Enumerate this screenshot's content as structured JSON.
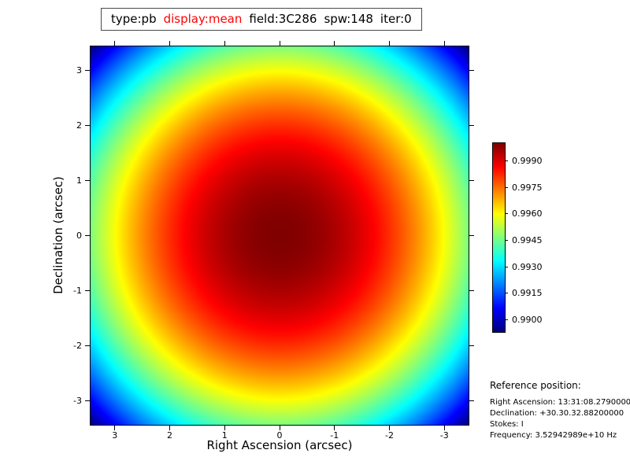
{
  "title": {
    "segments": [
      {
        "text": "type:pb",
        "color": "#000000"
      },
      {
        "text": "display:mean",
        "color": "#ff0000"
      },
      {
        "text": "field:3C286",
        "color": "#000000"
      },
      {
        "text": "spw:148",
        "color": "#000000"
      },
      {
        "text": "iter:0",
        "color": "#000000"
      }
    ]
  },
  "axes": {
    "xlabel": "Right Ascension (arcsec)",
    "ylabel": "Declination (arcsec)",
    "x_tick_labels": [
      "3",
      "2",
      "1",
      "0",
      "-1",
      "-2",
      "-3"
    ],
    "y_tick_labels": [
      "3",
      "2",
      "1",
      "0",
      "-1",
      "-2",
      "-3"
    ]
  },
  "colorbar": {
    "tick_labels": [
      "0.9990",
      "0.9975",
      "0.9960",
      "0.9945",
      "0.9930",
      "0.9915",
      "0.9900"
    ]
  },
  "reference": {
    "heading": "Reference position:",
    "lines": [
      "Right Ascension: 13:31:08.27900000",
      "Declination: +30.30.32.88200000",
      "Stokes: I",
      "Frequency: 3.52942989e+10 Hz"
    ]
  },
  "chart_data": {
    "type": "heatmap",
    "title": "type:pb  display:mean  field:3C286  spw:148  iter:0",
    "xlabel": "Right Ascension (arcsec)",
    "ylabel": "Declination (arcsec)",
    "xlim": [
      3.44,
      -3.44
    ],
    "ylim": [
      -3.44,
      3.44
    ],
    "x_ticks": [
      3,
      2,
      1,
      0,
      -1,
      -2,
      -3
    ],
    "y_ticks": [
      3,
      2,
      1,
      0,
      -1,
      -2,
      -3
    ],
    "colormap": "jet",
    "vmin": 0.9893,
    "vmax": 1.0,
    "colorbar_ticks": [
      0.999,
      0.9975,
      0.996,
      0.9945,
      0.993,
      0.9915,
      0.99
    ],
    "model": "circularly symmetric primary beam: value(r) = vmax - (vmax - vmin) * r^2 / rmax^2, with rmax = sqrt(2) * 3.44 arcsec (corner radius); peak at image center (0,0)",
    "sample_values": {
      "center": 1.0,
      "edge_midpoint": 0.99465,
      "corner": 0.9893
    }
  }
}
